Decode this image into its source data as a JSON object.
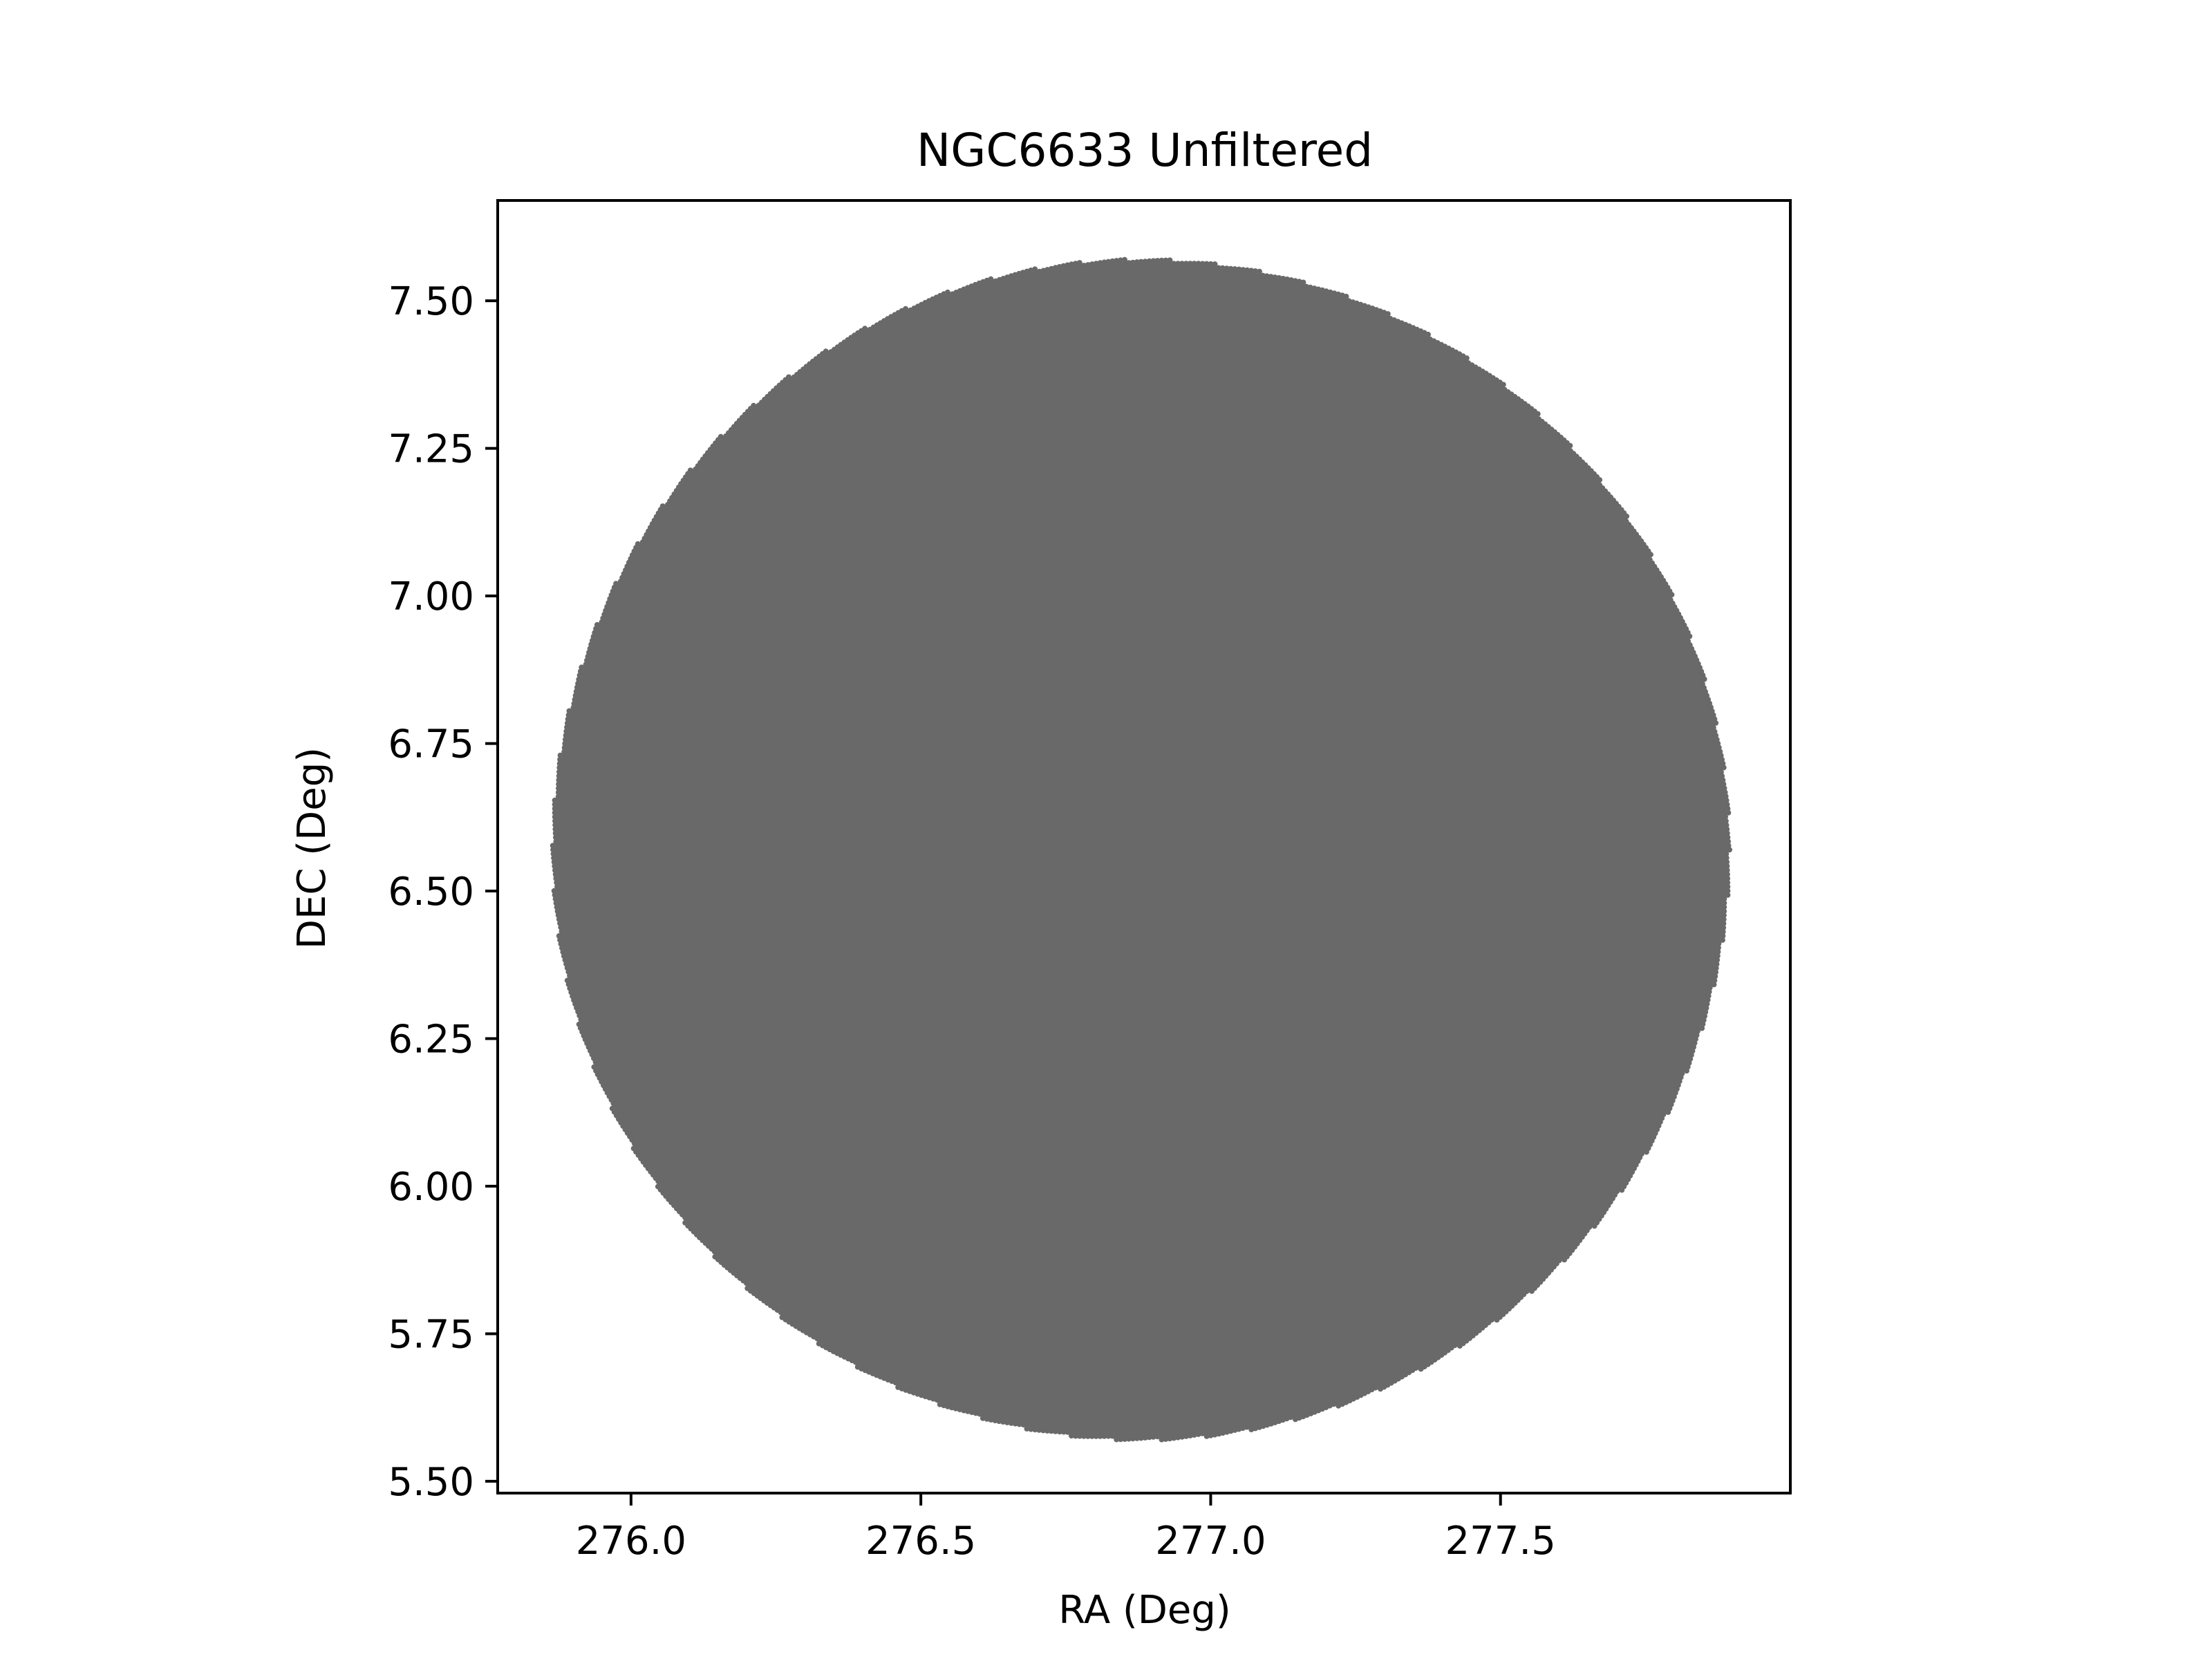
{
  "chart_data": {
    "type": "scatter",
    "title": "NGC6633 Unfiltered",
    "xlabel": "RA (Deg)",
    "ylabel": "DEC (Deg)",
    "xlim": [
      275.77,
      278.0
    ],
    "ylim": [
      5.48,
      7.67
    ],
    "x_ticks": [
      276.0,
      276.5,
      277.0,
      277.5
    ],
    "x_tick_labels": [
      "276.0",
      "276.5",
      "277.0",
      "277.5"
    ],
    "y_ticks": [
      5.5,
      5.75,
      6.0,
      6.25,
      6.5,
      6.75,
      7.0,
      7.25,
      7.5
    ],
    "y_tick_labels": [
      "5.50",
      "5.75",
      "6.00",
      "6.25",
      "6.50",
      "6.75",
      "7.00",
      "7.25",
      "7.50"
    ],
    "grid": false,
    "legend": "none",
    "series": [
      {
        "marker_color": "#696969",
        "region": {
          "shape": "disk",
          "center_ra": 276.88,
          "center_dec": 6.57,
          "radius_ra": 1.015,
          "radius_dec": 1.0
        }
      }
    ]
  }
}
